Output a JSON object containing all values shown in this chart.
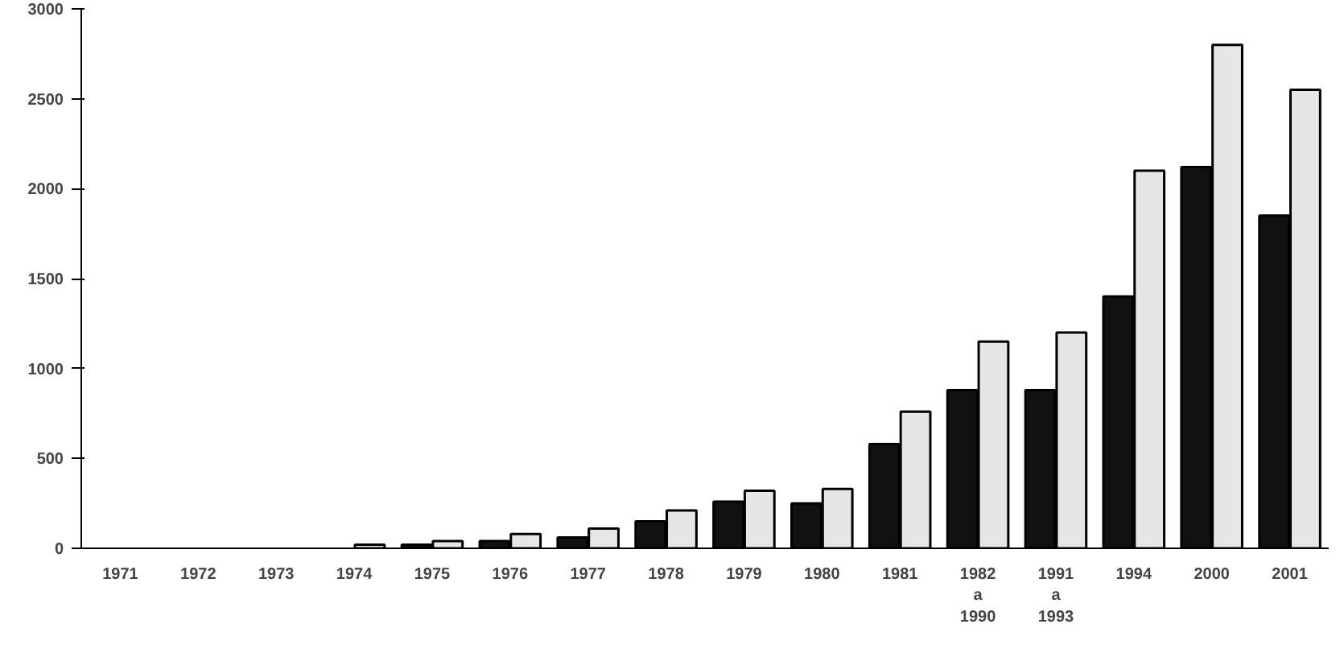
{
  "chart_data": {
    "type": "bar",
    "categories": [
      "1971",
      "1972",
      "1973",
      "1974",
      "1975",
      "1976",
      "1977",
      "1978",
      "1979",
      "1980",
      "1981",
      "1982\na\n1990",
      "1991\na\n1993",
      "1994",
      "2000",
      "2001"
    ],
    "series": [
      {
        "color": "#111111",
        "values": [
          0,
          0,
          0,
          0,
          20,
          40,
          60,
          150,
          260,
          250,
          580,
          880,
          880,
          1400,
          2120,
          1850
        ]
      },
      {
        "color": "#e6e6e6",
        "values": [
          0,
          0,
          0,
          20,
          40,
          80,
          110,
          210,
          320,
          330,
          760,
          1150,
          1200,
          2100,
          2800,
          2550
        ]
      }
    ],
    "ylim": [
      0,
      3000
    ],
    "yticks": [
      0,
      500,
      1000,
      1500,
      2000,
      2500,
      3000
    ],
    "grid": false
  }
}
